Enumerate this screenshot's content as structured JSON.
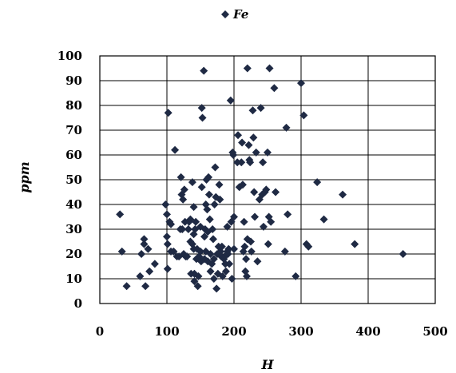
{
  "chart_data": {
    "type": "scatter",
    "title": "",
    "xlabel": "H",
    "ylabel": "ppm",
    "xlim": [
      0,
      500
    ],
    "ylim": [
      0,
      100
    ],
    "x_ticks": [
      "0",
      "100",
      "200",
      "300",
      "400",
      "500"
    ],
    "y_ticks": [
      "0",
      "10",
      "20",
      "30",
      "40",
      "50",
      "60",
      "70",
      "80",
      "90",
      "100"
    ],
    "grid": {
      "vertical": true,
      "horizontal": true
    },
    "legend": {
      "position": "top-center",
      "entries": [
        "Fe"
      ]
    },
    "series": [
      {
        "name": "Fe",
        "marker": "diamond",
        "color": "#1f2a44",
        "points": [
          [
            30,
            36
          ],
          [
            33,
            21
          ],
          [
            40,
            7
          ],
          [
            60,
            11
          ],
          [
            62,
            20
          ],
          [
            66,
            26
          ],
          [
            66,
            24
          ],
          [
            68,
            7
          ],
          [
            72,
            22
          ],
          [
            74,
            13
          ],
          [
            82,
            16
          ],
          [
            98,
            40
          ],
          [
            100,
            36
          ],
          [
            100,
            27
          ],
          [
            101,
            14
          ],
          [
            101,
            24
          ],
          [
            102,
            77
          ],
          [
            104,
            33
          ],
          [
            106,
            32
          ],
          [
            106,
            21
          ],
          [
            110,
            21
          ],
          [
            112,
            62
          ],
          [
            115,
            19
          ],
          [
            118,
            19
          ],
          [
            120,
            30
          ],
          [
            121,
            51
          ],
          [
            122,
            44
          ],
          [
            123,
            30
          ],
          [
            124,
            42
          ],
          [
            125,
            20
          ],
          [
            126,
            46
          ],
          [
            127,
            33
          ],
          [
            128,
            19
          ],
          [
            130,
            19
          ],
          [
            132,
            30
          ],
          [
            133,
            33
          ],
          [
            135,
            34
          ],
          [
            135,
            25
          ],
          [
            136,
            12
          ],
          [
            138,
            49
          ],
          [
            138,
            24
          ],
          [
            140,
            39
          ],
          [
            140,
            28
          ],
          [
            140,
            22
          ],
          [
            141,
            12
          ],
          [
            141,
            9
          ],
          [
            142,
            30
          ],
          [
            143,
            33
          ],
          [
            144,
            18
          ],
          [
            145,
            22
          ],
          [
            146,
            7
          ],
          [
            147,
            11
          ],
          [
            148,
            19
          ],
          [
            150,
            31
          ],
          [
            150,
            21
          ],
          [
            151,
            17
          ],
          [
            152,
            47
          ],
          [
            152,
            79
          ],
          [
            153,
            75
          ],
          [
            155,
            94
          ],
          [
            156,
            27
          ],
          [
            156,
            18
          ],
          [
            157,
            30
          ],
          [
            158,
            40
          ],
          [
            158,
            21
          ],
          [
            159,
            50
          ],
          [
            160,
            38
          ],
          [
            161,
            29
          ],
          [
            161,
            17
          ],
          [
            162,
            51
          ],
          [
            163,
            44
          ],
          [
            164,
            34
          ],
          [
            165,
            20
          ],
          [
            165,
            13
          ],
          [
            167,
            16
          ],
          [
            168,
            30
          ],
          [
            169,
            26
          ],
          [
            170,
            18
          ],
          [
            170,
            10
          ],
          [
            171,
            40
          ],
          [
            172,
            55
          ],
          [
            173,
            43
          ],
          [
            174,
            6
          ],
          [
            175,
            20
          ],
          [
            176,
            12
          ],
          [
            177,
            23
          ],
          [
            178,
            48
          ],
          [
            179,
            42
          ],
          [
            180,
            21
          ],
          [
            181,
            19
          ],
          [
            182,
            23
          ],
          [
            183,
            11
          ],
          [
            185,
            18
          ],
          [
            186,
            19
          ],
          [
            187,
            16
          ],
          [
            188,
            13
          ],
          [
            190,
            31
          ],
          [
            190,
            21
          ],
          [
            191,
            20
          ],
          [
            192,
            22
          ],
          [
            193,
            16
          ],
          [
            195,
            82
          ],
          [
            196,
            33
          ],
          [
            197,
            10
          ],
          [
            198,
            61
          ],
          [
            199,
            60
          ],
          [
            200,
            35
          ],
          [
            200,
            22
          ],
          [
            205,
            57
          ],
          [
            206,
            68
          ],
          [
            208,
            47
          ],
          [
            211,
            57
          ],
          [
            212,
            65
          ],
          [
            213,
            48
          ],
          [
            214,
            21
          ],
          [
            215,
            33
          ],
          [
            216,
            23
          ],
          [
            217,
            13
          ],
          [
            218,
            18
          ],
          [
            219,
            11
          ],
          [
            220,
            26
          ],
          [
            220,
            95
          ],
          [
            222,
            64
          ],
          [
            223,
            58
          ],
          [
            224,
            57
          ],
          [
            225,
            25
          ],
          [
            226,
            21
          ],
          [
            228,
            78
          ],
          [
            229,
            67
          ],
          [
            230,
            45
          ],
          [
            231,
            35
          ],
          [
            233,
            61
          ],
          [
            235,
            17
          ],
          [
            238,
            42
          ],
          [
            240,
            79
          ],
          [
            242,
            44
          ],
          [
            243,
            57
          ],
          [
            244,
            31
          ],
          [
            246,
            45
          ],
          [
            248,
            46
          ],
          [
            250,
            61
          ],
          [
            251,
            24
          ],
          [
            252,
            35
          ],
          [
            253,
            95
          ],
          [
            255,
            33
          ],
          [
            260,
            87
          ],
          [
            262,
            45
          ],
          [
            276,
            21
          ],
          [
            278,
            71
          ],
          [
            280,
            36
          ],
          [
            292,
            11
          ],
          [
            300,
            89
          ],
          [
            304,
            76
          ],
          [
            308,
            24
          ],
          [
            311,
            23
          ],
          [
            324,
            49
          ],
          [
            334,
            34
          ],
          [
            362,
            44
          ],
          [
            380,
            24
          ],
          [
            452,
            20
          ]
        ]
      }
    ]
  }
}
